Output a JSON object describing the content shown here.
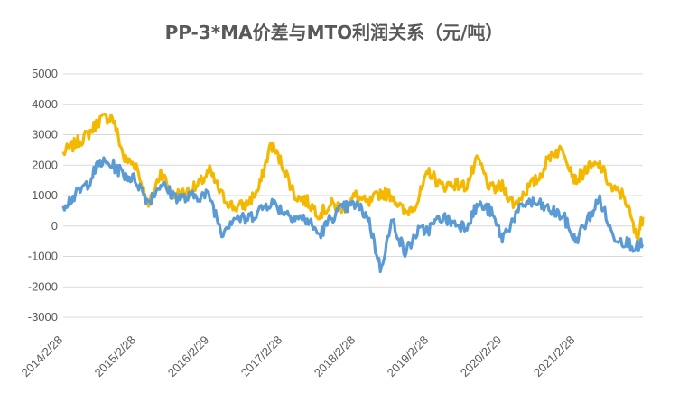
{
  "chart_data": {
    "type": "line",
    "title": "PP-3*MA价差与MTO利润关系（元/吨）",
    "xlabel": "",
    "ylabel": "",
    "ylim": [
      -3000,
      5000
    ],
    "yticks": [
      5000,
      4000,
      3000,
      2000,
      1000,
      0,
      -1000,
      -2000,
      -3000
    ],
    "xticks": [
      "2014/2/28",
      "2015/2/28",
      "2016/2/29",
      "2017/2/28",
      "2018/2/28",
      "2019/2/28",
      "2020/2/29",
      "2021/2/28"
    ],
    "x_range": [
      "2014/2/28",
      "2022/1/31"
    ],
    "grid": true,
    "legend": "none",
    "series": [
      {
        "color": "#F5B800",
        "dates": [
          "2014/2/28",
          "2014/4/30",
          "2014/6/30",
          "2014/8/31",
          "2014/10/31",
          "2014/12/31",
          "2015/2/28",
          "2015/4/30",
          "2015/6/30",
          "2015/8/31",
          "2015/10/31",
          "2015/12/31",
          "2016/2/29",
          "2016/4/30",
          "2016/6/30",
          "2016/8/31",
          "2016/10/31",
          "2016/12/31",
          "2017/2/28",
          "2017/4/30",
          "2017/6/30",
          "2017/8/31",
          "2017/10/31",
          "2017/12/31",
          "2018/2/28",
          "2018/4/30",
          "2018/6/30",
          "2018/8/31",
          "2018/10/31",
          "2018/12/31",
          "2019/2/28",
          "2019/4/30",
          "2019/6/30",
          "2019/8/31",
          "2019/10/31",
          "2019/12/31",
          "2020/2/29",
          "2020/4/30",
          "2020/6/30",
          "2020/8/31",
          "2020/10/31",
          "2020/12/31",
          "2021/2/28",
          "2021/4/30",
          "2021/6/30",
          "2021/8/31",
          "2021/10/31",
          "2021/12/31",
          "2022/1/31"
        ],
        "values": [
          2400,
          2700,
          3000,
          3500,
          3600,
          2200,
          2000,
          600,
          1800,
          1000,
          1100,
          1300,
          1800,
          1000,
          600,
          700,
          1200,
          2700,
          2000,
          1000,
          800,
          400,
          700,
          600,
          1000,
          700,
          1100,
          1000,
          400,
          800,
          1800,
          1300,
          1400,
          1300,
          2200,
          1200,
          1300,
          700,
          1200,
          1600,
          2400,
          2500,
          1500,
          1900,
          2000,
          1200,
          1000,
          -400,
          300
        ]
      },
      {
        "color": "#5B9BD5",
        "dates": [
          "2014/2/28",
          "2014/4/30",
          "2014/6/30",
          "2014/8/31",
          "2014/10/31",
          "2014/12/31",
          "2015/2/28",
          "2015/4/30",
          "2015/6/30",
          "2015/8/31",
          "2015/10/31",
          "2015/12/31",
          "2016/2/29",
          "2016/4/30",
          "2016/6/30",
          "2016/8/31",
          "2016/10/31",
          "2016/12/31",
          "2017/2/28",
          "2017/4/30",
          "2017/6/30",
          "2017/8/31",
          "2017/10/31",
          "2017/12/31",
          "2018/2/28",
          "2018/4/30",
          "2018/6/30",
          "2018/8/31",
          "2018/10/31",
          "2018/12/31",
          "2019/2/28",
          "2019/4/30",
          "2019/6/30",
          "2019/8/31",
          "2019/10/31",
          "2019/12/31",
          "2020/2/29",
          "2020/4/30",
          "2020/6/30",
          "2020/8/31",
          "2020/10/31",
          "2020/12/31",
          "2021/2/28",
          "2021/4/30",
          "2021/6/30",
          "2021/8/31",
          "2021/10/31",
          "2021/12/31",
          "2022/1/31"
        ],
        "values": [
          700,
          1000,
          1400,
          2100,
          2000,
          1700,
          1500,
          800,
          1400,
          1000,
          900,
          1000,
          1000,
          -200,
          300,
          200,
          500,
          800,
          500,
          300,
          200,
          -300,
          300,
          600,
          700,
          300,
          -1400,
          200,
          -900,
          -200,
          -100,
          300,
          100,
          0,
          700,
          500,
          -400,
          300,
          800,
          700,
          500,
          300,
          -500,
          200,
          900,
          -300,
          -500,
          -700,
          -600
        ]
      }
    ]
  }
}
